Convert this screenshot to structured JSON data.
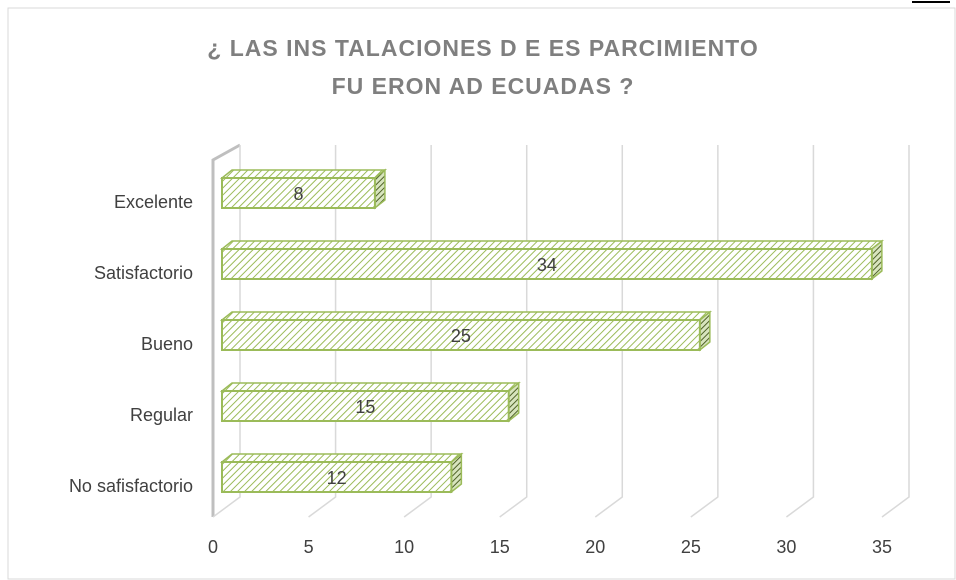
{
  "chart_data": {
    "type": "bar3d_horizontal",
    "title": [
      "¿ LAS INS TALACIONES D E ES PARCIMIENTO",
      "FU ERON AD ECUADAS ?"
    ],
    "categories": [
      "Excelente",
      "Satisfactorio",
      "Bueno",
      "Regular",
      "No safisfactorio"
    ],
    "values": [
      8,
      34,
      25,
      15,
      12
    ],
    "color": "#9bbb59",
    "xlim": [
      0,
      35
    ],
    "xticks": [
      0,
      5,
      10,
      15,
      20,
      25,
      30,
      35
    ],
    "grid": true
  }
}
